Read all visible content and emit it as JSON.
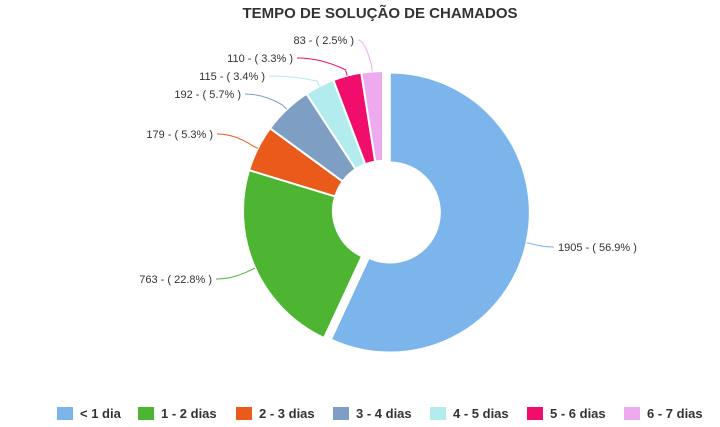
{
  "chart_data": {
    "type": "pie",
    "title": "TEMPO DE SOLUÇÃO DE CHAMADOS",
    "donut": true,
    "legend_position": "bottom",
    "categories": [
      "< 1 dia",
      "1 - 2 dias",
      "2 - 3 dias",
      "3 - 4 dias",
      "4 - 5 dias",
      "5 - 6 dias",
      "6 - 7 dias"
    ],
    "values": [
      1905,
      763,
      179,
      192,
      115,
      110,
      83
    ],
    "percentages": [
      56.9,
      22.8,
      5.3,
      5.7,
      3.4,
      3.3,
      2.5
    ],
    "data_labels": [
      "1905 - ( 56.9% )",
      "763 - ( 22.8% )",
      "179 - ( 5.3% )",
      "192 - ( 5.7% )",
      "115 - ( 3.4% )",
      "110 - ( 3.3% )",
      "83 - ( 2.5% )"
    ],
    "colors": [
      "#7cb5ec",
      "#4db532",
      "#ea5a1b",
      "#7f9ec4",
      "#b2ecee",
      "#f00d6c",
      "#eeaaee"
    ]
  }
}
